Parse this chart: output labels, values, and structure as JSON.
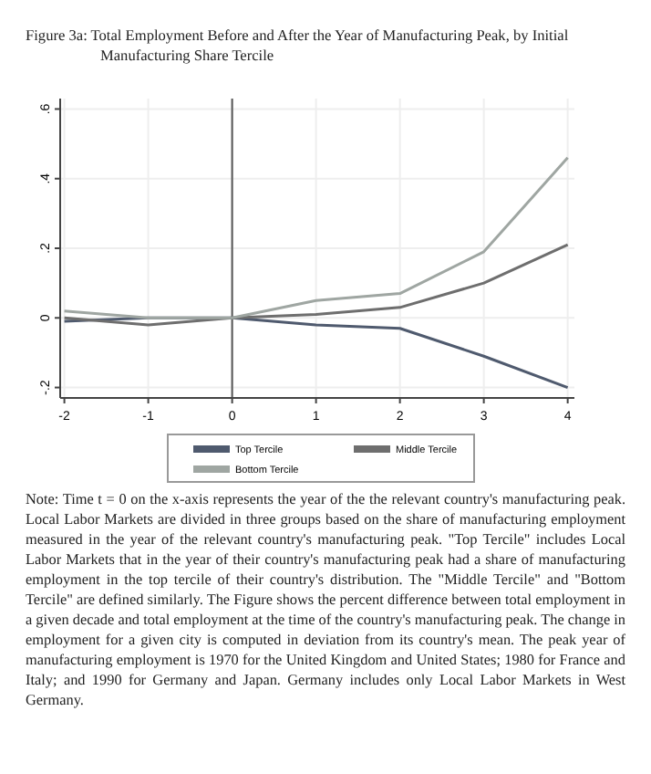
{
  "chart_data": {
    "type": "line",
    "title": "Figure 3a: Total Employment Before and After the Year of Manufacturing Peak, by Initial Manufacturing Share Tercile",
    "x": [
      -2,
      -1,
      0,
      1,
      2,
      3,
      4
    ],
    "series": [
      {
        "name": "Top Tercile",
        "color": "#4f5a6e",
        "values": [
          -0.01,
          0.0,
          0,
          -0.02,
          -0.03,
          -0.11,
          -0.2
        ]
      },
      {
        "name": "Middle Tercile",
        "color": "#6e6e6e",
        "values": [
          0.0,
          -0.02,
          0,
          0.01,
          0.03,
          0.1,
          0.21
        ]
      },
      {
        "name": "Bottom Tercile",
        "color": "#9fa6a2",
        "values": [
          0.02,
          0.0,
          0,
          0.05,
          0.07,
          0.19,
          0.46
        ]
      }
    ],
    "xlim": [
      -2.05,
      4.08
    ],
    "xticks": [
      -2,
      -1,
      0,
      1,
      2,
      3,
      4
    ],
    "ylim": [
      -0.23,
      0.63
    ],
    "yticks": [
      {
        "value": -0.2,
        "label": "-.2"
      },
      {
        "value": 0,
        "label": "0"
      },
      {
        "value": 0.2,
        "label": ".2"
      },
      {
        "value": 0.4,
        "label": ".4"
      },
      {
        "value": 0.6,
        "label": ".6"
      }
    ],
    "ref_lines": [
      {
        "axis": "x",
        "value": 0,
        "color": "#555555"
      }
    ],
    "grid": true,
    "legend": "bottom",
    "marker": "none",
    "line_style": "solid",
    "annotations": [
      "Note: Time t = 0 on the x-axis represents the year of the the relevant country's manufacturing peak. Local Labor Markets are divided in three groups based on the share of manufacturing employment measured in the year of the relevant country's manufacturing peak. \"Top Tercile\" includes Local Labor Markets that in the year of their country's manufacturing peak had a share of manufacturing employment in the top tercile of their country's distribution. The \"Middle Tercile\" and \"Bottom Tercile\" are defined similarly. The Figure shows the percent difference between total employment in a given decade and total employment at the time of the country's manufacturing peak. The change in employment for a given city is computed in deviation from its country's mean. The peak year of manufacturing employment is 1970 for the United Kingdom and United States; 1980 for France and Italy; and 1990 for Germany and Japan. Germany includes only Local Labor Markets in West Germany."
    ]
  }
}
